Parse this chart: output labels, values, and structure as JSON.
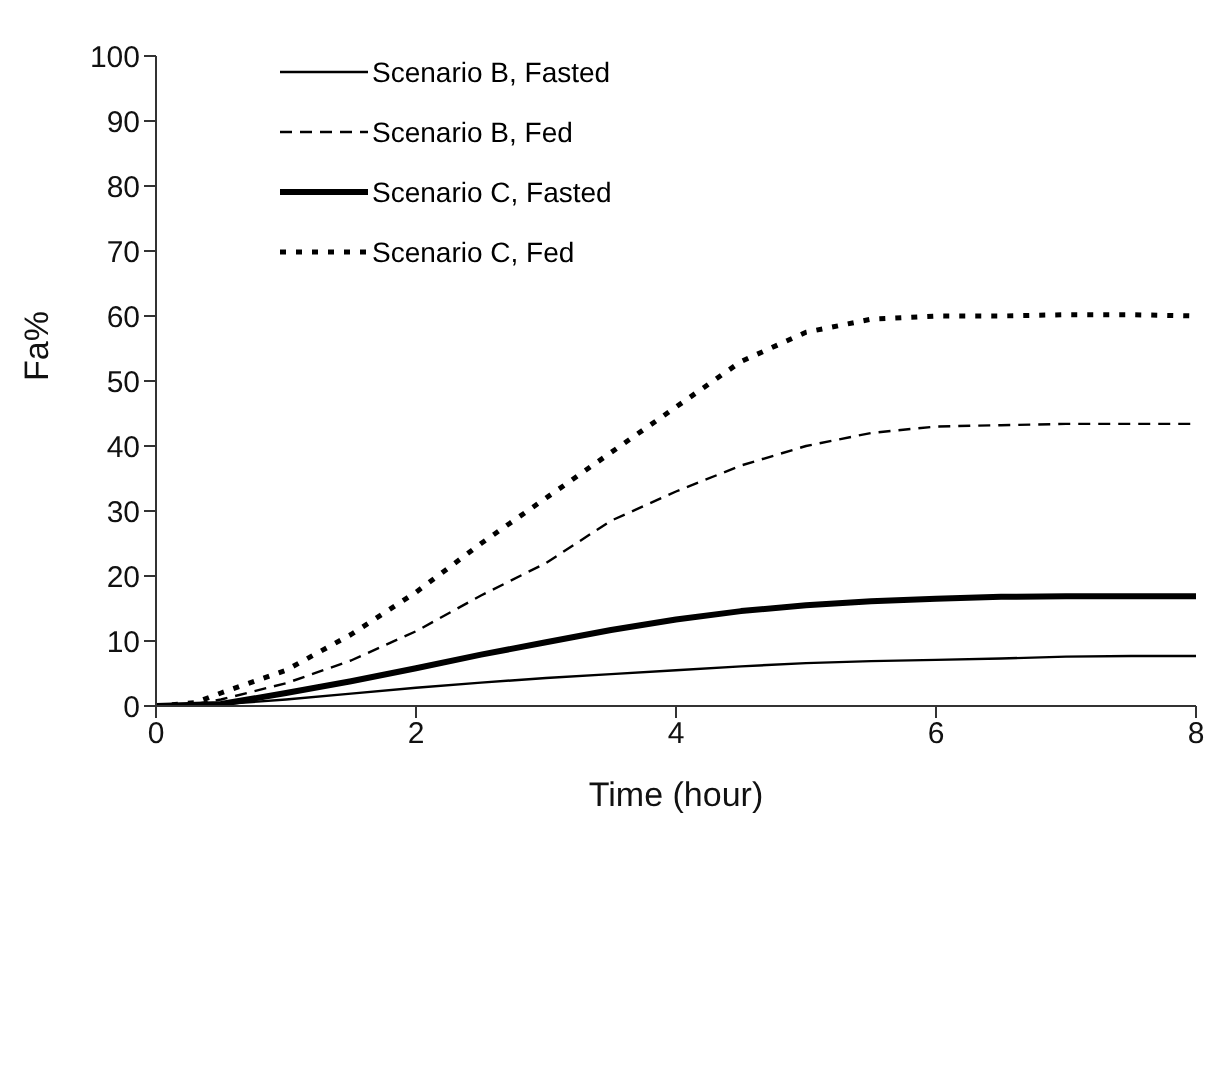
{
  "chart_data": {
    "type": "line",
    "xlabel": "Time (hour)",
    "ylabel": "Fa%",
    "xlim": [
      0,
      8
    ],
    "xticks": [
      0,
      2,
      4,
      6,
      8
    ],
    "ylim": [
      0,
      100
    ],
    "yticks": [
      0,
      10,
      20,
      30,
      40,
      50,
      60,
      70,
      80,
      90,
      100
    ],
    "legend": "top left",
    "marker": "none",
    "series": [
      {
        "name": "Scenario B, Fasted",
        "color": "#000000",
        "line_style": "solid",
        "x": [
          0,
          0.3,
          0.6,
          1,
          1.5,
          2,
          2.5,
          3,
          3.5,
          4,
          4.5,
          5,
          5.5,
          6,
          6.5,
          7,
          7.5,
          8
        ],
        "values": [
          0,
          0,
          0.4,
          1,
          1.9,
          2.8,
          3.6,
          4.3,
          4.9,
          5.5,
          6.1,
          6.6,
          6.9,
          7.1,
          7.3,
          7.6,
          7.7,
          7.7
        ]
      },
      {
        "name": "Scenario B, Fed",
        "color": "#000000",
        "line_style": "dashed",
        "x": [
          0,
          0.3,
          0.5,
          1,
          1.5,
          2,
          2.5,
          3,
          3.5,
          4,
          4.5,
          5,
          5.5,
          6,
          6.5,
          7,
          7.5,
          8
        ],
        "values": [
          0,
          0.3,
          1,
          3.5,
          7,
          11.5,
          17,
          22,
          28.5,
          33,
          37,
          40,
          42,
          43,
          43.2,
          43.4,
          43.4,
          43.4
        ]
      },
      {
        "name": "Scenario C, Fasted",
        "color": "#000000",
        "line_style": "solid",
        "x": [
          0,
          0.5,
          1,
          1.5,
          2,
          2.5,
          3,
          3.5,
          4,
          4.5,
          5,
          5.5,
          6,
          6.5,
          7,
          7.5,
          8
        ],
        "values": [
          0,
          0.3,
          2,
          3.8,
          5.8,
          7.9,
          9.8,
          11.7,
          13.3,
          14.6,
          15.5,
          16.1,
          16.5,
          16.8,
          16.9,
          16.9,
          16.9
        ]
      },
      {
        "name": "Scenario C, Fed",
        "color": "#000000",
        "line_style": "dotted",
        "x": [
          0,
          0.3,
          0.5,
          1,
          1.5,
          2,
          2.5,
          3,
          3.5,
          4,
          4.5,
          5,
          5.5,
          6,
          6.5,
          7,
          7.5,
          8
        ],
        "values": [
          0,
          0.5,
          2,
          5.5,
          11,
          17.5,
          25,
          32,
          39,
          46,
          53,
          57.5,
          59.5,
          60,
          60,
          60.2,
          60.2,
          60
        ]
      }
    ]
  }
}
